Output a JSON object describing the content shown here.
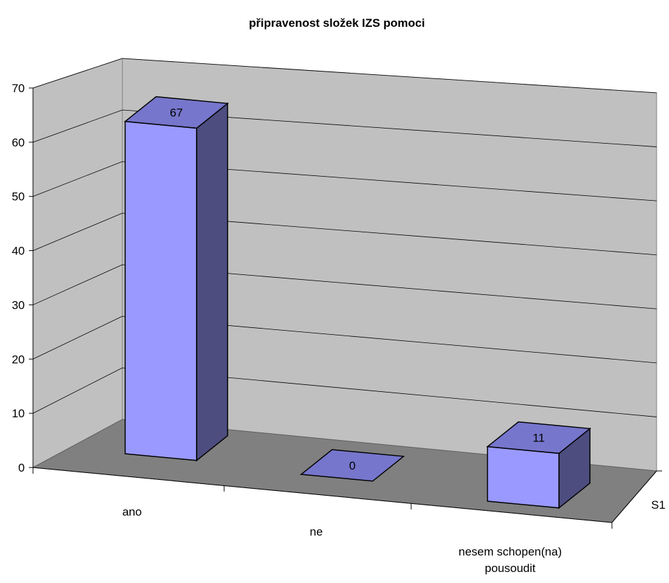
{
  "chart_data": {
    "type": "bar",
    "title": "připravenost složek IZS pomoci",
    "categories": [
      "ano",
      "ne",
      "nesem schopen(na) pousoudit"
    ],
    "category_lines": [
      [
        "ano"
      ],
      [
        "ne"
      ],
      [
        "nesem schopen(na)",
        "pousoudit"
      ]
    ],
    "series": [
      {
        "name": "S1",
        "values": [
          67,
          0,
          11
        ]
      }
    ],
    "yticks": [
      "0",
      "10",
      "20",
      "30",
      "40",
      "50",
      "60",
      "70"
    ],
    "ylim": [
      0,
      70
    ],
    "grid": true,
    "legend": "none",
    "colors": {
      "bar_front": "#9999ff",
      "bar_top": "#7676cc",
      "bar_side": "#4d4d80",
      "wall": "#c0c0c0",
      "floor": "#808080"
    }
  }
}
